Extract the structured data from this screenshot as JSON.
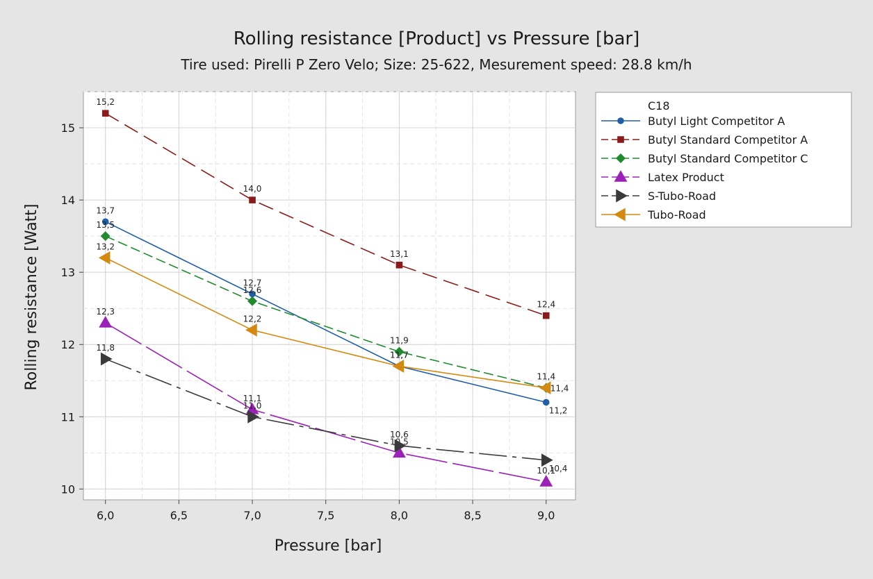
{
  "chart_data": {
    "type": "line",
    "title": "Rolling resistance [Product] vs Pressure [bar]",
    "subtitle": "Tire used: Pirelli P Zero Velo; Size: 25-622, Mesurement speed: 28.8 km/h",
    "xlabel": "Pressure [bar]",
    "ylabel": "Rolling resistance [Watt]",
    "xlim": [
      5.85,
      9.2
    ],
    "ylim": [
      9.85,
      15.5
    ],
    "xticks": [
      6.0,
      6.5,
      7.0,
      7.5,
      8.0,
      8.5,
      9.0
    ],
    "xtick_labels": [
      "6,0",
      "6,5",
      "7,0",
      "7,5",
      "8,0",
      "8,5",
      "9,0"
    ],
    "yticks": [
      10,
      11,
      12,
      13,
      14,
      15
    ],
    "ytick_labels": [
      "10",
      "11",
      "12",
      "13",
      "14",
      "15"
    ],
    "grid": true,
    "legend_title": "C18",
    "legend_position": "right",
    "x": [
      6.0,
      7.0,
      8.0,
      9.0
    ],
    "series": [
      {
        "name": "Butyl Light Competitor A",
        "values": [
          13.7,
          12.7,
          11.7,
          11.2
        ],
        "labels": [
          "13,7",
          "12,7",
          "11,7",
          "11,2"
        ],
        "color": "#1f5fa6",
        "marker": "circle",
        "dash": ""
      },
      {
        "name": "Butyl Standard Competitor A",
        "values": [
          15.2,
          14.0,
          13.1,
          12.4
        ],
        "labels": [
          "15,2",
          "14,0",
          "13,1",
          "12,4"
        ],
        "color": "#8b1a1a",
        "marker": "square",
        "dash": "22,10"
      },
      {
        "name": "Butyl Standard Competitor C",
        "values": [
          13.5,
          12.6,
          11.9,
          11.4
        ],
        "labels": [
          "13,5",
          "12,6",
          "11,9",
          "11,4"
        ],
        "color": "#1f8a2e",
        "marker": "diamond",
        "dash": "14,6"
      },
      {
        "name": "Latex Product",
        "values": [
          12.3,
          11.1,
          10.5,
          10.1
        ],
        "labels": [
          "12,3",
          "11,1",
          "10,5",
          "10,1"
        ],
        "color": "#9b22b8",
        "marker": "triangle-up",
        "dash": "60,8"
      },
      {
        "name": "S-Tubo-Road",
        "values": [
          11.8,
          11.0,
          10.6,
          10.4
        ],
        "labels": [
          "11,8",
          "11,0",
          "10,6",
          "10,4"
        ],
        "color": "#3a3a3a",
        "marker": "triangle-right",
        "dash": "40,8,6,8"
      },
      {
        "name": "Tubo-Road",
        "values": [
          13.2,
          12.2,
          11.7,
          11.4
        ],
        "labels": [
          "13,2",
          "12,2",
          "11,7",
          "11,4"
        ],
        "color": "#d48a10",
        "marker": "triangle-left",
        "dash": ""
      }
    ]
  }
}
